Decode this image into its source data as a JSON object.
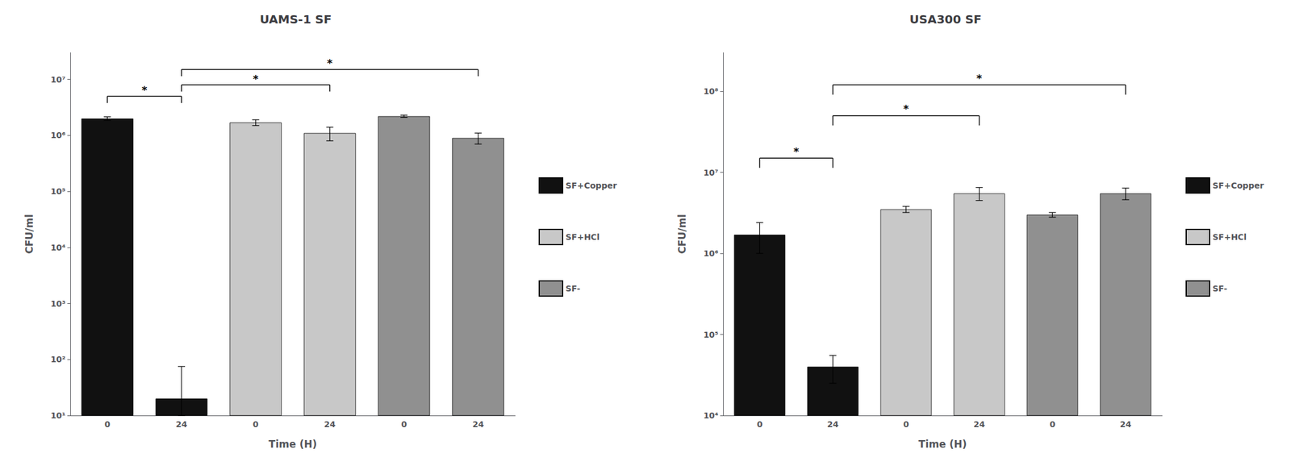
{
  "chart_data": [
    {
      "type": "bar",
      "title": "UAMS-1 SF",
      "xlabel": "Time (H)",
      "ylabel": "CFU/ml",
      "categories": [
        "0",
        "24",
        "0",
        "24",
        "0",
        "24"
      ],
      "series": [
        {
          "name": "SF+Copper",
          "color": "#111111",
          "values": [
            2000000,
            20,
            null,
            null,
            null,
            null
          ],
          "error_up": [
            150000,
            55,
            null,
            null,
            null,
            null
          ],
          "error_down": [
            150000,
            10,
            null,
            null,
            null,
            null
          ]
        },
        {
          "name": "SF+HCl",
          "color": "#c8c8c8",
          "values": [
            null,
            null,
            1700000,
            1100000,
            null,
            null
          ],
          "error_up": [
            null,
            null,
            200000,
            300000,
            null,
            null
          ],
          "error_down": [
            null,
            null,
            200000,
            300000,
            null,
            null
          ]
        },
        {
          "name": "SF-",
          "color": "#909090",
          "values": [
            null,
            null,
            null,
            null,
            2200000,
            900000
          ],
          "error_up": [
            null,
            null,
            null,
            null,
            100000,
            200000
          ],
          "error_down": [
            null,
            null,
            null,
            null,
            100000,
            200000
          ]
        }
      ],
      "log": "y",
      "ylim": [
        10,
        30000000
      ],
      "yticks": [
        {
          "value": 10,
          "label": "10¹"
        },
        {
          "value": 100,
          "label": "10²"
        },
        {
          "value": 1000,
          "label": "10³"
        },
        {
          "value": 10000,
          "label": "10⁴"
        },
        {
          "value": 100000,
          "label": "10⁵"
        },
        {
          "value": 1000000,
          "label": "10⁶"
        },
        {
          "value": 10000000,
          "label": "10⁷"
        }
      ],
      "grid": false,
      "legend": "right",
      "annotations": [
        {
          "text": "*",
          "x1": 0,
          "x2": 1,
          "y": 5000000
        },
        {
          "text": "*",
          "x1": 1,
          "x2": 3,
          "y": 8000000
        },
        {
          "text": "*",
          "x1": 1,
          "x2": 5,
          "y": 15000000
        }
      ]
    },
    {
      "type": "bar",
      "title": "USA300 SF",
      "xlabel": "Time (H)",
      "ylabel": "CFU/ml",
      "categories": [
        "0",
        "24",
        "0",
        "24",
        "0",
        "24"
      ],
      "series": [
        {
          "name": "SF+Copper",
          "color": "#111111",
          "values": [
            1700000,
            40000,
            null,
            null,
            null,
            null
          ],
          "error_up": [
            700000,
            15000,
            null,
            null,
            null,
            null
          ],
          "error_down": [
            700000,
            15000,
            null,
            null,
            null,
            null
          ]
        },
        {
          "name": "SF+HCl",
          "color": "#c8c8c8",
          "values": [
            null,
            null,
            3500000,
            5500000,
            null,
            null
          ],
          "error_up": [
            null,
            null,
            300000,
            1000000,
            null,
            null
          ],
          "error_down": [
            null,
            null,
            300000,
            1000000,
            null,
            null
          ]
        },
        {
          "name": "SF-",
          "color": "#909090",
          "values": [
            null,
            null,
            null,
            null,
            3000000,
            5500000
          ],
          "error_up": [
            null,
            null,
            null,
            null,
            200000,
            900000
          ],
          "error_down": [
            null,
            null,
            null,
            null,
            200000,
            900000
          ]
        }
      ],
      "log": "y",
      "ylim": [
        10000,
        300000000
      ],
      "yticks": [
        {
          "value": 10000,
          "label": "10⁴"
        },
        {
          "value": 100000,
          "label": "10⁵"
        },
        {
          "value": 1000000,
          "label": "10⁶"
        },
        {
          "value": 10000000,
          "label": "10⁷"
        },
        {
          "value": 100000000,
          "label": "10⁸"
        }
      ],
      "grid": false,
      "legend": "right",
      "annotations": [
        {
          "text": "*",
          "x1": 0,
          "x2": 1,
          "y": 15000000
        },
        {
          "text": "*",
          "x1": 1,
          "x2": 3,
          "y": 50000000
        },
        {
          "text": "*",
          "x1": 1,
          "x2": 5,
          "y": 120000000
        }
      ]
    }
  ]
}
